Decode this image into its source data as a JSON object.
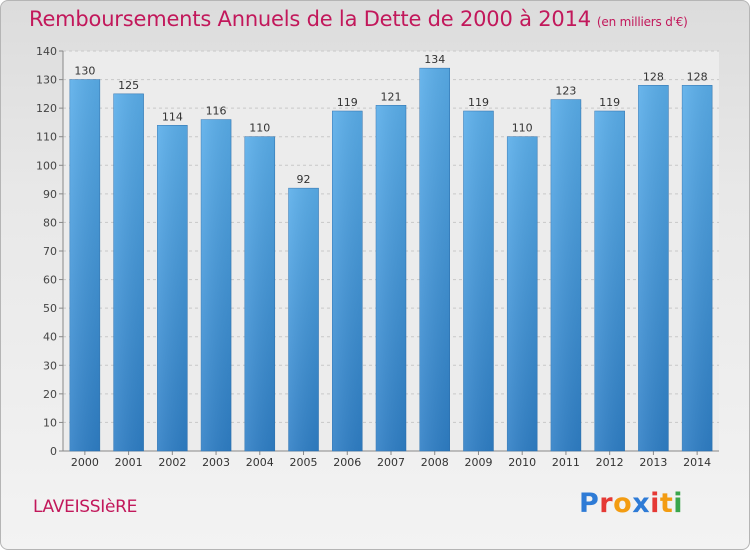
{
  "title": "Remboursements Annuels de la Dette de 2000 à 2014",
  "unit": "(en milliers d'€)",
  "commune": "LAVEISSIèRE",
  "logo": {
    "letters": [
      "P",
      "r",
      "o",
      "x",
      "i",
      "t",
      "i"
    ],
    "colors": [
      "#2e7bd6",
      "#e53935",
      "#f39c12",
      "#2e7bd6",
      "#e53935",
      "#f39c12",
      "#3aa64b"
    ]
  },
  "colors": {
    "bar_top": "#5aaeea",
    "bar_bottom": "#2f7fc6",
    "title": "#c2185b"
  },
  "chart_data": {
    "type": "bar",
    "categories": [
      "2000",
      "2001",
      "2002",
      "2003",
      "2004",
      "2005",
      "2006",
      "2007",
      "2008",
      "2009",
      "2010",
      "2011",
      "2012",
      "2013",
      "2014"
    ],
    "values": [
      130,
      125,
      114,
      116,
      110,
      92,
      119,
      121,
      134,
      119,
      110,
      123,
      119,
      128,
      128
    ],
    "ylim": [
      0,
      140
    ],
    "yticks": [
      0,
      10,
      20,
      30,
      40,
      50,
      60,
      70,
      80,
      90,
      100,
      110,
      120,
      130,
      140
    ],
    "grid": true
  }
}
